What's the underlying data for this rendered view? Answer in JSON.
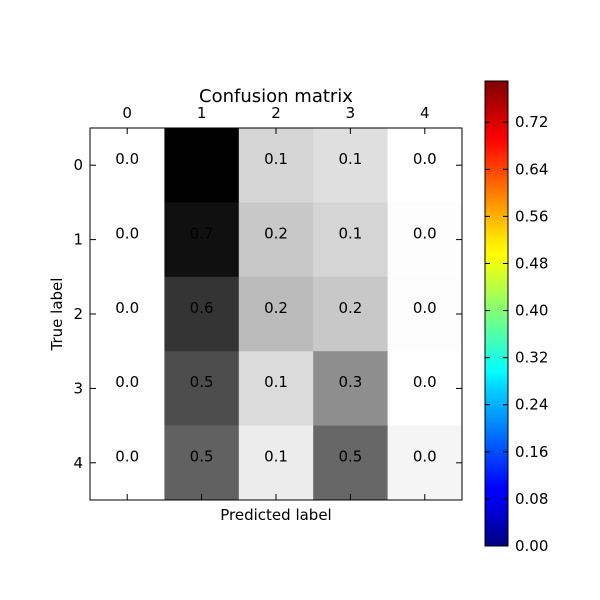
{
  "chart_data": {
    "type": "heatmap",
    "title": "Confusion matrix",
    "xlabel": "Predicted label",
    "ylabel": "True label",
    "x_categories": [
      "0",
      "1",
      "2",
      "3",
      "4"
    ],
    "y_categories": [
      "0",
      "1",
      "2",
      "3",
      "4"
    ],
    "values": [
      [
        0.0,
        0.8,
        0.1,
        0.1,
        0.0
      ],
      [
        0.0,
        0.7,
        0.2,
        0.1,
        0.0
      ],
      [
        0.0,
        0.6,
        0.2,
        0.2,
        0.0
      ],
      [
        0.0,
        0.5,
        0.1,
        0.3,
        0.0
      ],
      [
        0.0,
        0.5,
        0.1,
        0.5,
        0.0
      ]
    ],
    "shade_values": [
      [
        0.0,
        0.79,
        0.13,
        0.1,
        0.0
      ],
      [
        0.0,
        0.74,
        0.17,
        0.13,
        0.005
      ],
      [
        0.0,
        0.63,
        0.21,
        0.17,
        0.01
      ],
      [
        0.0,
        0.55,
        0.11,
        0.35,
        0.0
      ],
      [
        0.0,
        0.49,
        0.06,
        0.47,
        0.03
      ]
    ],
    "cell_labels": [
      [
        "0.0",
        "",
        "0.1",
        "0.1",
        "0.0"
      ],
      [
        "0.0",
        "0.7",
        "0.2",
        "0.1",
        "0.0"
      ],
      [
        "0.0",
        "0.6",
        "0.2",
        "0.2",
        "0.0"
      ],
      [
        "0.0",
        "0.5",
        "0.1",
        "0.3",
        "0.0"
      ],
      [
        "0.0",
        "0.5",
        "0.1",
        "0.5",
        "0.0"
      ]
    ],
    "cell_colormap": "gray_r",
    "colorbar": {
      "colormap": "jet",
      "range": [
        0.0,
        0.79
      ],
      "ticks": [
        "0.00",
        "0.08",
        "0.16",
        "0.24",
        "0.32",
        "0.40",
        "0.48",
        "0.56",
        "0.64",
        "0.72"
      ],
      "tick_values": [
        0.0,
        0.08,
        0.16,
        0.24,
        0.32,
        0.4,
        0.48,
        0.56,
        0.64,
        0.72
      ]
    },
    "grid": false
  }
}
